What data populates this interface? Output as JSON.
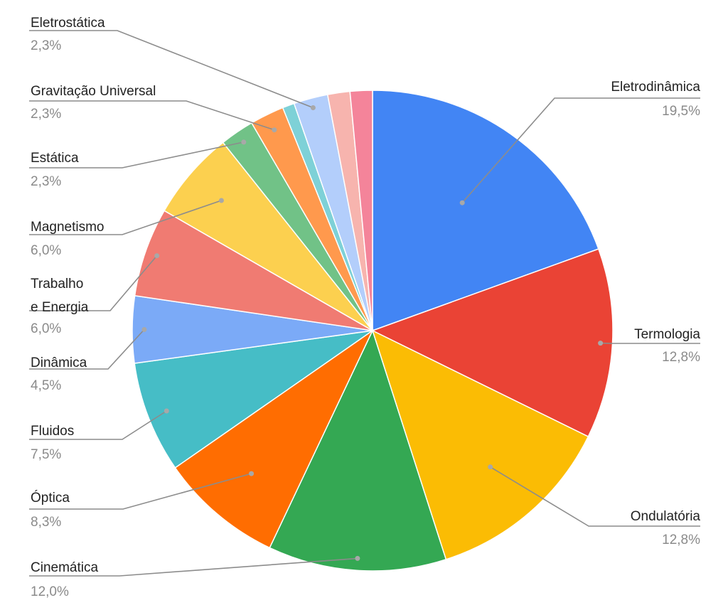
{
  "chart_data": {
    "type": "pie",
    "start_angle_deg": 0,
    "direction": "clockwise",
    "slices": [
      {
        "label": "Eletrodinâmica",
        "value": 19.5,
        "pct_label": "19,5%",
        "color": "#4285F4"
      },
      {
        "label": "Termologia",
        "value": 12.8,
        "pct_label": "12,8%",
        "color": "#EA4335"
      },
      {
        "label": "Ondulatória",
        "value": 12.8,
        "pct_label": "12,8%",
        "color": "#FBBC04"
      },
      {
        "label": "Cinemática",
        "value": 12.0,
        "pct_label": "12,0%",
        "color": "#34A853"
      },
      {
        "label": "Óptica",
        "value": 8.3,
        "pct_label": "8,3%",
        "color": "#FF6D01"
      },
      {
        "label": "Fluidos",
        "value": 7.5,
        "pct_label": "7,5%",
        "color": "#46BDC6"
      },
      {
        "label": "Dinâmica",
        "value": 4.5,
        "pct_label": "4,5%",
        "color": "#7BAAF7"
      },
      {
        "label": "Trabalho e Energia",
        "label_lines": [
          "Trabalho",
          "e Energia"
        ],
        "value": 6.0,
        "pct_label": "6,0%",
        "color": "#F07B72"
      },
      {
        "label": "Magnetismo",
        "value": 6.0,
        "pct_label": "6,0%",
        "color": "#FCD04F"
      },
      {
        "label": "Estática",
        "value": 2.3,
        "pct_label": "2,3%",
        "color": "#71C287"
      },
      {
        "label": "Gravitação Universal",
        "value": 2.3,
        "pct_label": "2,3%",
        "color": "#FF994D"
      },
      {
        "label": "",
        "value": 0.8,
        "pct_label": "",
        "color": "#7ED1D7"
      },
      {
        "label": "Eletrostática",
        "value": 2.3,
        "pct_label": "2,3%",
        "color": "#B3CEFB"
      },
      {
        "label": "",
        "value": 1.5,
        "pct_label": "",
        "color": "#F7B4AE"
      },
      {
        "label": "",
        "value": 1.5,
        "pct_label": "",
        "color": "#F4849A"
      }
    ]
  }
}
